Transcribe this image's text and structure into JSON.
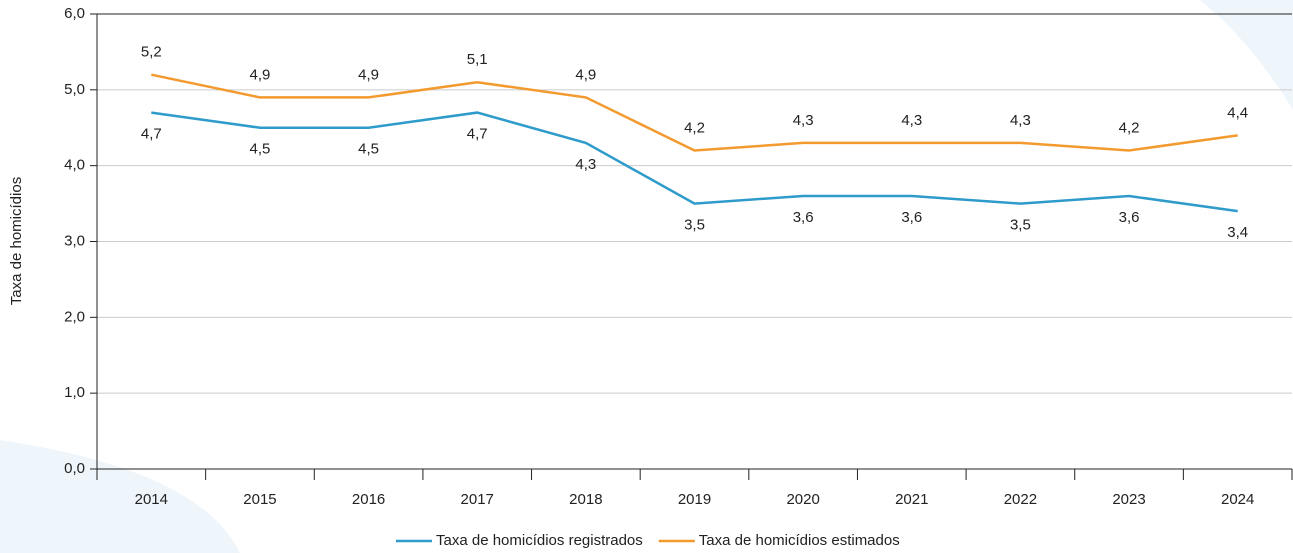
{
  "chart_data": {
    "type": "line",
    "y_label": "Taxa de homicídios",
    "categories": [
      "2014",
      "2015",
      "2016",
      "2017",
      "2018",
      "2019",
      "2020",
      "2021",
      "2022",
      "2023",
      "2024"
    ],
    "series": [
      {
        "name": "Taxa de homicídios registrados",
        "color": "#2e9bcb",
        "values": [
          4.7,
          4.5,
          4.5,
          4.7,
          4.3,
          3.5,
          3.6,
          3.6,
          3.5,
          3.6,
          3.4
        ],
        "value_labels": [
          "4,7",
          "4,5",
          "4,5",
          "4,7",
          "4,3",
          "3,5",
          "3,6",
          "3,6",
          "3,5",
          "3,6",
          "3,4"
        ]
      },
      {
        "name": "Taxa de homicídios estimados",
        "color": "#f39a2e",
        "values": [
          5.2,
          4.9,
          4.9,
          5.1,
          4.9,
          4.2,
          4.3,
          4.3,
          4.3,
          4.2,
          4.4
        ],
        "value_labels": [
          "5,2",
          "4,9",
          "4,9",
          "5,1",
          "4,9",
          "4,2",
          "4,3",
          "4,3",
          "4,3",
          "4,2",
          "4,4"
        ]
      }
    ],
    "ylim": [
      0,
      6
    ],
    "yticks": [
      {
        "value": 0,
        "label": "0,0"
      },
      {
        "value": 1,
        "label": "1,0"
      },
      {
        "value": 2,
        "label": "2,0"
      },
      {
        "value": 3,
        "label": "3,0"
      },
      {
        "value": 4,
        "label": "4,0"
      },
      {
        "value": 5,
        "label": "5,0"
      },
      {
        "value": 6,
        "label": "6,0"
      }
    ],
    "grid": true,
    "legend": "bottom"
  }
}
